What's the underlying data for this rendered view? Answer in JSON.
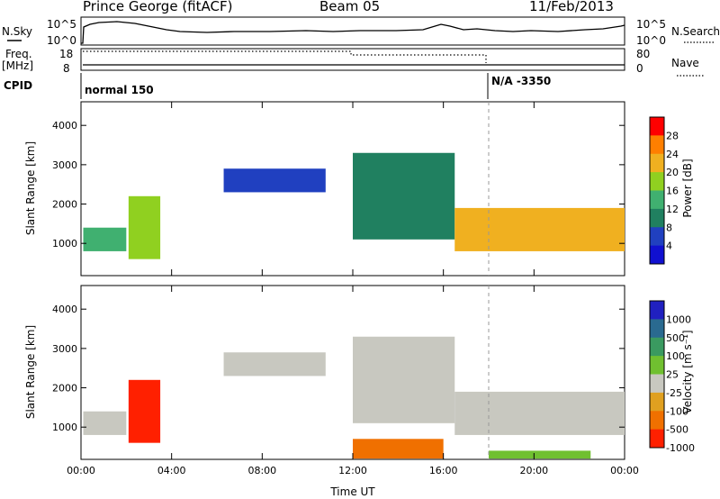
{
  "header": {
    "station": "Prince George (fitACF)",
    "beam": "Beam 05",
    "date": "11/Feb/2013"
  },
  "strips": {
    "nsky_label": "N.Sky",
    "nsky_top": "10^5",
    "nsky_bottom": "10^0",
    "nsearch_label": "N.Search",
    "nsearch_top": "10^5",
    "nsearch_bottom": "10^0",
    "freq_label": "Freq.",
    "freq_unit": "[MHz]",
    "freq_top": "18",
    "freq_bottom": "8",
    "nave_label": "Nave",
    "nave_top": "80",
    "nave_bottom": "0",
    "cpid_label": "CPID",
    "cpid_first": "normal 150",
    "cpid_second": "N/A -3350"
  },
  "colorbars": {
    "power": {
      "label": "Power [dB]",
      "ticks": [
        "28",
        "24",
        "20",
        "16",
        "12",
        "8",
        "4"
      ],
      "colors": [
        "#ff0000",
        "#ff7f00",
        "#f0b020",
        "#90d020",
        "#40b070",
        "#208060",
        "#2040c0",
        "#1010d0"
      ]
    },
    "velocity": {
      "label": "Velocity [m s⁻¹]",
      "ticks": [
        "1000",
        "500",
        "100",
        "25",
        "-25",
        "-100",
        "-500",
        "-1000"
      ],
      "colors": [
        "#2020c0",
        "#2a6a90",
        "#3a9a60",
        "#70c030",
        "#c8c8c0",
        "#e0a020",
        "#f07000",
        "#ff2000"
      ]
    }
  },
  "chart_data": [
    {
      "type": "heatmap",
      "panel": "power",
      "ylabel": "Slant Range [km]",
      "xlabel": "Time UT",
      "x_ticks": [
        "00:00",
        "04:00",
        "08:00",
        "12:00",
        "16:00",
        "20:00",
        "00:00"
      ],
      "y_ticks": [
        1000,
        2000,
        3000,
        4000
      ],
      "ylim": [
        180,
        4600
      ],
      "xlim_hours": [
        0,
        24
      ],
      "colorbar": "Power [dB]",
      "regions": [
        {
          "t0": 0.1,
          "t1": 2.0,
          "r0": 800,
          "r1": 1400,
          "level": 16
        },
        {
          "t0": 2.1,
          "t1": 3.5,
          "r0": 600,
          "r1": 2200,
          "level": 20
        },
        {
          "t0": 6.3,
          "t1": 10.8,
          "r0": 2300,
          "r1": 2900,
          "level": 6
        },
        {
          "t0": 12.0,
          "t1": 16.5,
          "r0": 1100,
          "r1": 3300,
          "level": 12
        },
        {
          "t0": 16.5,
          "t1": 24.0,
          "r0": 800,
          "r1": 1900,
          "level": 24
        }
      ]
    },
    {
      "type": "heatmap",
      "panel": "velocity",
      "ylabel": "Slant Range [km]",
      "xlabel": "Time UT",
      "x_ticks": [
        "00:00",
        "04:00",
        "08:00",
        "12:00",
        "16:00",
        "20:00",
        "00:00"
      ],
      "y_ticks": [
        1000,
        2000,
        3000,
        4000
      ],
      "ylim": [
        180,
        4600
      ],
      "xlim_hours": [
        0,
        24
      ],
      "colorbar": "Velocity [m s⁻¹]",
      "regions": [
        {
          "t0": 0.1,
          "t1": 2.0,
          "r0": 800,
          "r1": 1400,
          "level": 0
        },
        {
          "t0": 2.1,
          "t1": 3.5,
          "r0": 600,
          "r1": 2200,
          "level": -700
        },
        {
          "t0": 6.3,
          "t1": 10.8,
          "r0": 2300,
          "r1": 2900,
          "level": 0
        },
        {
          "t0": 12.0,
          "t1": 16.5,
          "r0": 1100,
          "r1": 3300,
          "level": 0
        },
        {
          "t0": 16.5,
          "t1": 24.0,
          "r0": 800,
          "r1": 1900,
          "level": 0
        },
        {
          "t0": 12.0,
          "t1": 16.0,
          "r0": 200,
          "r1": 700,
          "level": -150
        },
        {
          "t0": 18.0,
          "t1": 22.5,
          "r0": 200,
          "r1": 400,
          "level": 60
        }
      ]
    }
  ]
}
